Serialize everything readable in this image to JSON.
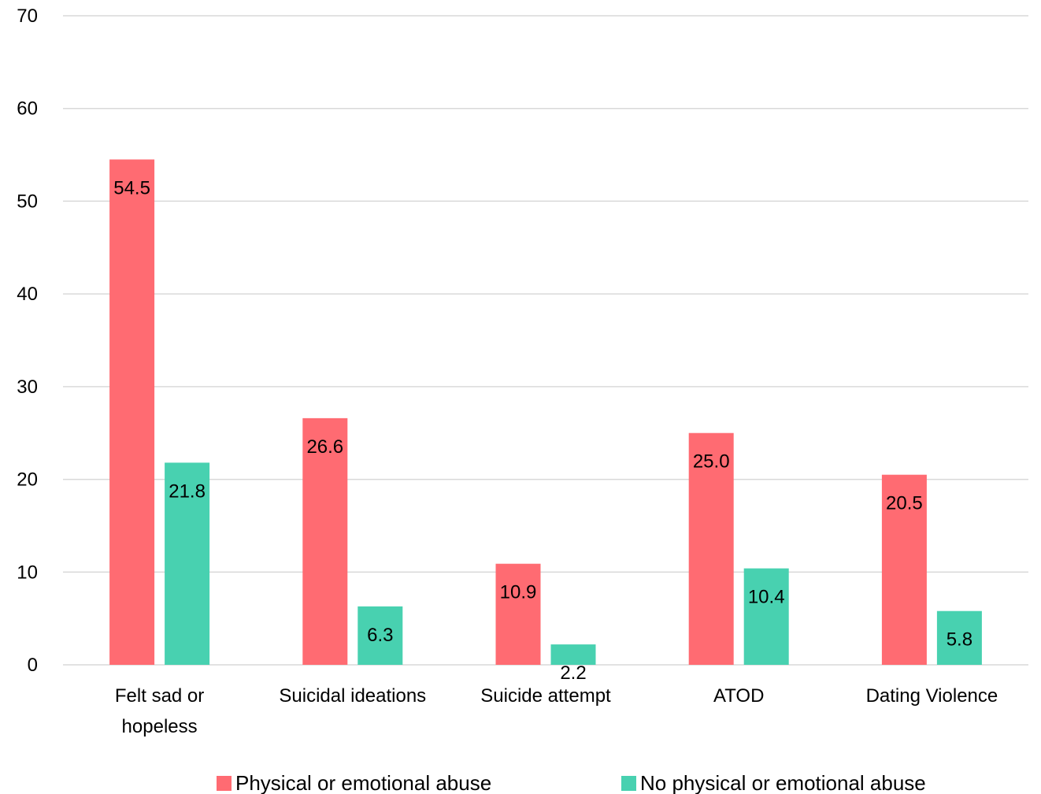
{
  "chart_data": {
    "type": "bar",
    "categories": [
      [
        "Felt sad or",
        "hopeless"
      ],
      [
        "Suicidal ideations"
      ],
      [
        "Suicide attempt"
      ],
      [
        "ATOD"
      ],
      [
        "Dating Violence"
      ]
    ],
    "series": [
      {
        "name": "Physical or emotional abuse",
        "color": "#FF6B72",
        "values": [
          54.5,
          26.6,
          10.9,
          25.0,
          20.5
        ],
        "labels": [
          "54.5",
          "26.6",
          "10.9",
          "25.0",
          "20.5"
        ]
      },
      {
        "name": "No physical or emotional abuse",
        "color": "#48D1B0",
        "values": [
          21.8,
          6.3,
          2.2,
          10.4,
          5.8
        ],
        "labels": [
          "21.8",
          "6.3",
          "2.2",
          "10.4",
          "5.8"
        ]
      }
    ],
    "ylim": [
      0,
      70
    ],
    "yticks": [
      "0",
      "10",
      "20",
      "30",
      "40",
      "50",
      "60",
      "70"
    ],
    "grid": true,
    "gridColor": "#D9D9D9",
    "legend": "bottom"
  }
}
